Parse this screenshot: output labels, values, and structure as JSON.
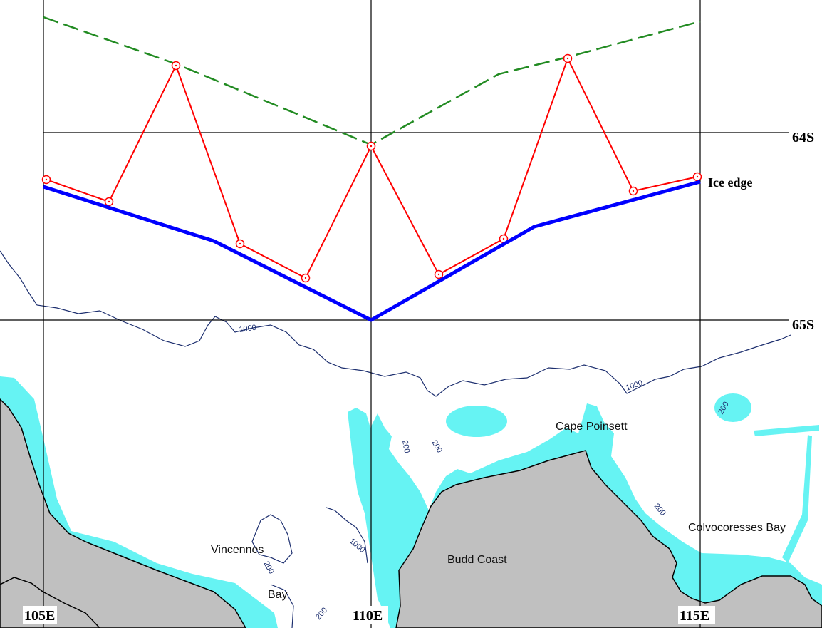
{
  "colors": {
    "ocean": "#ffffff",
    "land": "#c0c0c0",
    "shelf": "#66f3f3",
    "contour": "#1d2f6f",
    "grid": "#000000",
    "ice_edge": "#0000ff",
    "survey_track": "#ff0000",
    "dashed_track": "#228b22"
  },
  "map": {
    "latitude_labels": {
      "lat64": "64S",
      "lat65": "65S"
    },
    "longitude_labels": {
      "lon105": "105E",
      "lon110": "110E",
      "lon115": "115E"
    },
    "ice_edge_label": "Ice edge",
    "place_names": {
      "cape_poinsett": "Cape Poinsett",
      "vincennes": "Vincennes",
      "bay": "Bay",
      "budd_coast": "Budd Coast",
      "colvocoresses_bay": "Colvocoresses Bay"
    },
    "contour_labels": {
      "c1000_north": "1000",
      "c1000_east": "1000",
      "c1000_south": "1000",
      "c200_a": "200",
      "c200_b": "200",
      "c200_c": "200",
      "c200_d": "200",
      "c200_e": "200",
      "c200_f": "200"
    }
  }
}
